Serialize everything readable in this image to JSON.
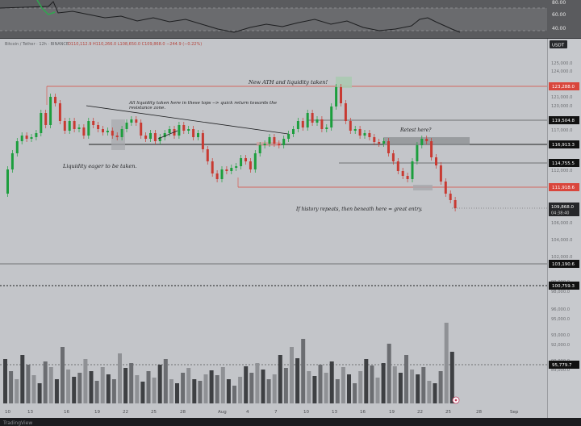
{
  "rsi_panel": {
    "labels": [
      "80.00",
      "60.00",
      "40.00"
    ]
  },
  "header": {
    "symbol_line": "Bitcoin / Tether · 12h · BINANCE",
    "ohlc": "O110,112.9 H110,266.0 L108,650.0 C109,868.0 −244.9 (−0.22%)",
    "currency": "USDT"
  },
  "price_axis": {
    "ticks": [
      "125,000.0",
      "124,000.0",
      "122,000.0",
      "121,000.0",
      "120,000.0",
      "118,000.0",
      "117,000.0",
      "115,000.0",
      "113,000.0",
      "112,000.0",
      "110,000.0",
      "108,000.0",
      "107,000.0",
      "106,000.0",
      "104,000.0",
      "102,000.0",
      "101,000.0",
      "99,000.0",
      "98,000.0",
      "96,000.0",
      "95,000.0",
      "93,000.0",
      "92,000.0",
      "90,000.0",
      "89,000.0"
    ],
    "level_labels": [
      {
        "id": "ath",
        "text": "123,288.0",
        "color": "#d9463c"
      },
      {
        "id": "l119",
        "text": "119,504.8",
        "color": "#111111"
      },
      {
        "id": "l116",
        "text": "116,913.3",
        "color": "#111111"
      },
      {
        "id": "l114",
        "text": "114,755.5",
        "color": "#111111"
      },
      {
        "id": "l111",
        "text": "111,918.6",
        "color": "#d9463c"
      },
      {
        "id": "l103",
        "text": "103,190.6",
        "color": "#111111"
      },
      {
        "id": "l100",
        "text": "100,759.3",
        "color": "#111111"
      },
      {
        "id": "l95",
        "text": "95,779.7",
        "color": "#111111"
      }
    ],
    "current_price": "109,868.0",
    "countdown": "04:38:40"
  },
  "annotations": {
    "ath": "New ATH and liquidity taken!",
    "tops_line1": "All liquidity taken here in these tops --> quick return towards the",
    "tops_line2": "resistance zone.",
    "retest": "Retest here?",
    "liquidity": "Liquidity eager to be taken.",
    "history": "If history repeats, then beneath here = great entry."
  },
  "time_axis": {
    "labels": [
      "10",
      "13",
      "16",
      "19",
      "22",
      "25",
      "28",
      "Aug",
      "4",
      "7",
      "10",
      "13",
      "16",
      "19",
      "22",
      "25",
      "28",
      "Sep"
    ]
  },
  "footer": {
    "text": "TradingView"
  },
  "colors": {
    "bg": "#c3c5c9",
    "up": "#1c9e3d",
    "down": "#c83a32",
    "resistance": "#d9463c"
  }
}
